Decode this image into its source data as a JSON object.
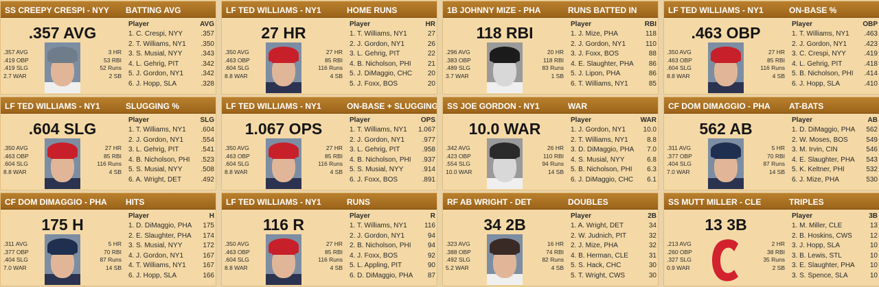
{
  "cards": [
    {
      "player": "SS CREEPY CRESPI - NYY",
      "stat": "BATTING AVG",
      "big": ".357 AVG",
      "left": [
        ".357 AVG",
        ".419 OBP",
        ".419 SLG",
        "2.7 WAR"
      ],
      "right": [
        "3 HR",
        "53 RBI",
        "52 Runs",
        "2 SB"
      ],
      "col_player": "Player",
      "col_stat": "AVG",
      "rows": [
        [
          "1. C. Crespi, NYY",
          ".357"
        ],
        [
          "2. T. Williams, NY1",
          ".350"
        ],
        [
          "3. S. Musial, NYY",
          ".343"
        ],
        [
          "4. L. Gehrig, PIT",
          ".342"
        ],
        [
          "5. J. Gordon, NY1",
          ".342"
        ],
        [
          "6. J. Hopp, SLA",
          ".328"
        ]
      ],
      "photo": "portrait-classic-cap",
      "cap_color": "#6f7d8a"
    },
    {
      "player": "LF TED WILLIAMS - NY1",
      "stat": "HOME RUNS",
      "big": "27 HR",
      "left": [
        ".350 AVG",
        ".463 OBP",
        ".604 SLG",
        "8.8 WAR"
      ],
      "right": [
        "27 HR",
        "85 RBI",
        "116 Runs",
        "4 SB"
      ],
      "col_player": "Player",
      "col_stat": "HR",
      "rows": [
        [
          "1. T. Williams, NY1",
          "27"
        ],
        [
          "2. J. Gordon, NY1",
          "26"
        ],
        [
          "3. L. Gehrig, PIT",
          "22"
        ],
        [
          "4. B. Nicholson, PHI",
          "21"
        ],
        [
          "5. J. DiMaggio, CHC",
          "20"
        ],
        [
          "5. J. Foxx, BOS",
          "20"
        ]
      ],
      "photo": "portrait-red-cap",
      "cap_color": "#c8202a"
    },
    {
      "player": "1B JOHNNY MIZE - PHA",
      "stat": "RUNS BATTED IN",
      "big": "118 RBI",
      "left": [
        ".296 AVG",
        ".383 OBP",
        ".489 SLG",
        "3.7 WAR"
      ],
      "right": [
        "20 HR",
        "118 RBI",
        "83 Runs",
        "1 SB"
      ],
      "col_player": "Player",
      "col_stat": "RBI",
      "rows": [
        [
          "1. J. Mize, PHA",
          "118"
        ],
        [
          "2. J. Gordon, NY1",
          "110"
        ],
        [
          "3. J. Foxx, BOS",
          "88"
        ],
        [
          "4. E. Slaughter, PHA",
          "86"
        ],
        [
          "5. J. Lipon, PHA",
          "86"
        ],
        [
          "6. T. Williams, NY1",
          "85"
        ]
      ],
      "photo": "portrait-bw-cap",
      "cap_color": "#1c1c1c"
    },
    {
      "player": "LF TED WILLIAMS - NY1",
      "stat": "ON-BASE %",
      "big": ".463 OBP",
      "left": [
        ".350 AVG",
        ".463 OBP",
        ".604 SLG",
        "8.8 WAR"
      ],
      "right": [
        "27 HR",
        "85 RBI",
        "116 Runs",
        "4 SB"
      ],
      "col_player": "Player",
      "col_stat": "OBP",
      "rows": [
        [
          "1. T. Williams, NY1",
          ".463"
        ],
        [
          "2. J. Gordon, NY1",
          ".423"
        ],
        [
          "3. C. Crespi, NYY",
          ".419"
        ],
        [
          "4. L. Gehrig, PIT",
          ".418"
        ],
        [
          "5. B. Nicholson, PHI",
          ".414"
        ],
        [
          "6. J. Hopp, SLA",
          ".410"
        ]
      ],
      "photo": "portrait-red-cap",
      "cap_color": "#c8202a"
    },
    {
      "player": "LF TED WILLIAMS - NY1",
      "stat": "SLUGGING %",
      "big": ".604 SLG",
      "left": [
        ".350 AVG",
        ".463 OBP",
        ".604 SLG",
        "8.8 WAR"
      ],
      "right": [
        "27 HR",
        "85 RBI",
        "116 Runs",
        "4 SB"
      ],
      "col_player": "Player",
      "col_stat": "SLG",
      "rows": [
        [
          "1. T. Williams, NY1",
          ".604"
        ],
        [
          "2. J. Gordon, NY1",
          ".554"
        ],
        [
          "3. L. Gehrig, PIT",
          ".541"
        ],
        [
          "4. B. Nicholson, PHI",
          ".523"
        ],
        [
          "5. S. Musial, NYY",
          ".508"
        ],
        [
          "6. A. Wright, DET",
          ".492"
        ]
      ],
      "photo": "portrait-red-cap",
      "cap_color": "#c8202a"
    },
    {
      "player": "LF TED WILLIAMS - NY1",
      "stat": "ON-BASE + SLUGGING",
      "big": "1.067 OPS",
      "left": [
        ".350 AVG",
        ".463 OBP",
        ".604 SLG",
        "8.8 WAR"
      ],
      "right": [
        "27 HR",
        "85 RBI",
        "116 Runs",
        "4 SB"
      ],
      "col_player": "Player",
      "col_stat": "OPS",
      "rows": [
        [
          "1. T. Williams, NY1",
          "1.067"
        ],
        [
          "2. J. Gordon, NY1",
          ".977"
        ],
        [
          "3. L. Gehrig, PIT",
          ".958"
        ],
        [
          "4. B. Nicholson, PHI",
          ".937"
        ],
        [
          "5. S. Musial, NYY",
          ".914"
        ],
        [
          "6. J. Foxx, BOS",
          ".891"
        ]
      ],
      "photo": "portrait-red-cap",
      "cap_color": "#c8202a"
    },
    {
      "player": "SS JOE GORDON - NY1",
      "stat": "WAR",
      "big": "10.0 WAR",
      "left": [
        ".342 AVG",
        ".423 OBP",
        ".554 SLG",
        "10.0 WAR"
      ],
      "right": [
        "26 HR",
        "110 RBI",
        "94 Runs",
        "14 SB"
      ],
      "col_player": "Player",
      "col_stat": "WAR",
      "rows": [
        [
          "1. J. Gordon, NY1",
          "10.0"
        ],
        [
          "2. T. Williams, NY1",
          "8.8"
        ],
        [
          "3. D. DiMaggio, PHA",
          "7.0"
        ],
        [
          "4. S. Musial, NYY",
          "6.8"
        ],
        [
          "5. B. Nicholson, PHI",
          "6.3"
        ],
        [
          "6. J. DiMaggio, CHC",
          "6.1"
        ]
      ],
      "photo": "portrait-bw-cap",
      "cap_color": "#2a2a2a"
    },
    {
      "player": "CF DOM DIMAGGIO - PHA",
      "stat": "AT-BATS",
      "big": "562 AB",
      "left": [
        ".311 AVG",
        ".377 OBP",
        ".404 SLG",
        "7.0 WAR"
      ],
      "right": [
        "5 HR",
        "70 RBI",
        "87 Runs",
        "14 SB"
      ],
      "col_player": "Player",
      "col_stat": "AB",
      "rows": [
        [
          "1. D. DiMaggio, PHA",
          "562"
        ],
        [
          "2. W. Moses, BOS",
          "549"
        ],
        [
          "3. M. Irvin, CIN",
          "546"
        ],
        [
          "4. E. Slaughter, PHA",
          "543"
        ],
        [
          "5. K. Keltner, PHI",
          "532"
        ],
        [
          "6. J. Mize, PHA",
          "530"
        ]
      ],
      "photo": "portrait-navy-cap",
      "cap_color": "#1f2f4f"
    },
    {
      "player": "CF DOM DIMAGGIO - PHA",
      "stat": "HITS",
      "big": "175 H",
      "left": [
        ".311 AVG",
        ".377 OBP",
        ".404 SLG",
        "7.0 WAR"
      ],
      "right": [
        "5 HR",
        "70 RBI",
        "87 Runs",
        "14 SB"
      ],
      "col_player": "Player",
      "col_stat": "H",
      "rows": [
        [
          "1. D. DiMaggio, PHA",
          "175"
        ],
        [
          "2. E. Slaughter, PHA",
          "174"
        ],
        [
          "3. S. Musial, NYY",
          "172"
        ],
        [
          "4. J. Gordon, NY1",
          "167"
        ],
        [
          "4. T. Williams, NY1",
          "167"
        ],
        [
          "6. J. Hopp, SLA",
          "166"
        ]
      ],
      "photo": "portrait-navy-cap",
      "cap_color": "#1f2f4f"
    },
    {
      "player": "LF TED WILLIAMS - NY1",
      "stat": "RUNS",
      "big": "116 R",
      "left": [
        ".350 AVG",
        ".463 OBP",
        ".604 SLG",
        "8.8 WAR"
      ],
      "right": [
        "27 HR",
        "85 RBI",
        "116 Runs",
        "4 SB"
      ],
      "col_player": "Player",
      "col_stat": "R",
      "rows": [
        [
          "1. T. Williams, NY1",
          "116"
        ],
        [
          "2. J. Gordon, NY1",
          "94"
        ],
        [
          "2. B. Nicholson, PHI",
          "94"
        ],
        [
          "4. J. Foxx, BOS",
          "92"
        ],
        [
          "5. L. Appling, PIT",
          "90"
        ],
        [
          "6. D. DiMaggio, PHA",
          "87"
        ]
      ],
      "photo": "portrait-red-cap",
      "cap_color": "#c8202a"
    },
    {
      "player": "RF AB WRIGHT - DET",
      "stat": "DOUBLES",
      "big": "34 2B",
      "left": [
        ".323 AVG",
        ".388 OBP",
        ".492 SLG",
        "5.2 WAR"
      ],
      "right": [
        "16 HR",
        "74 RBI",
        "82 Runs",
        "4 SB"
      ],
      "col_player": "Player",
      "col_stat": "2B",
      "rows": [
        [
          "1. A. Wright, DET",
          "34"
        ],
        [
          "2. W. Judnich, PIT",
          "32"
        ],
        [
          "2. J. Mize, PHA",
          "32"
        ],
        [
          "4. B. Herman, CLE",
          "31"
        ],
        [
          "5. S. Hack, CHC",
          "30"
        ],
        [
          "5. T. Wright, CWS",
          "30"
        ]
      ],
      "photo": "portrait-dark-cap",
      "cap_color": "#3a2a26"
    },
    {
      "player": "SS MUTT MILLER - CLE",
      "stat": "TRIPLES",
      "big": "13 3B",
      "left": [
        ".213 AVG",
        ".260 OBP",
        ".327 SLG",
        "0.9 WAR"
      ],
      "right": [
        "2 HR",
        "38 RBI",
        "35 Runs",
        "2 SB"
      ],
      "col_player": "Player",
      "col_stat": "3B",
      "rows": [
        [
          "1. M. Miller, CLE",
          "13"
        ],
        [
          "2. B. Hoskins, CWS",
          "12"
        ],
        [
          "3. J. Hopp, SLA",
          "10"
        ],
        [
          "3. B. Lewis, STL",
          "10"
        ],
        [
          "3. E. Slaughter, PHA",
          "10"
        ],
        [
          "3. S. Spence, SLA",
          "10"
        ]
      ],
      "photo": "team-logo-c",
      "cap_color": "#d2222d"
    }
  ]
}
